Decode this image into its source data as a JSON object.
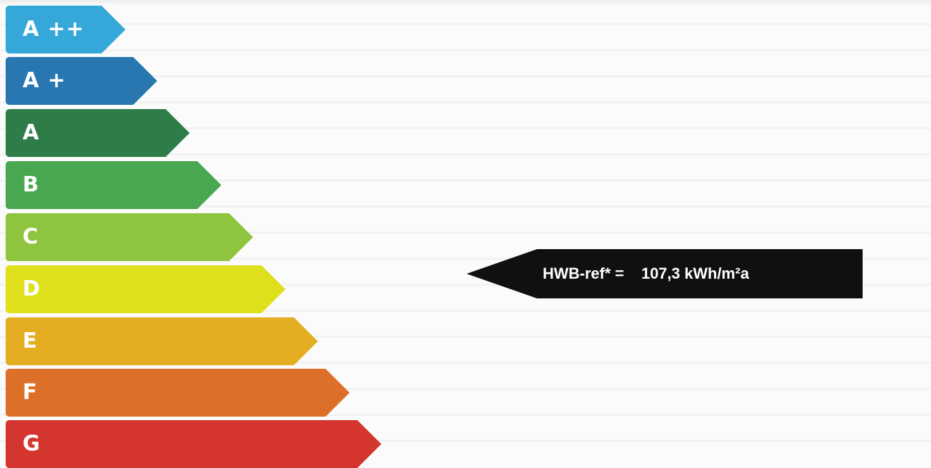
{
  "classes": [
    {
      "label": "A ++",
      "color": "#35a7d8"
    },
    {
      "label": "A +",
      "color": "#2877b1"
    },
    {
      "label": "A",
      "color": "#2e7d49"
    },
    {
      "label": "B",
      "color": "#48a750"
    },
    {
      "label": "C",
      "color": "#8fc43e"
    },
    {
      "label": "D",
      "color": "#dfe01c"
    },
    {
      "label": "E",
      "color": "#e5ad21"
    },
    {
      "label": "F",
      "color": "#dc7029"
    },
    {
      "label": "G",
      "color": "#d4352f"
    }
  ],
  "indicator": {
    "text": "HWB-ref* =    107,3 kWh/m²a",
    "color": "#101010",
    "class": "D"
  }
}
